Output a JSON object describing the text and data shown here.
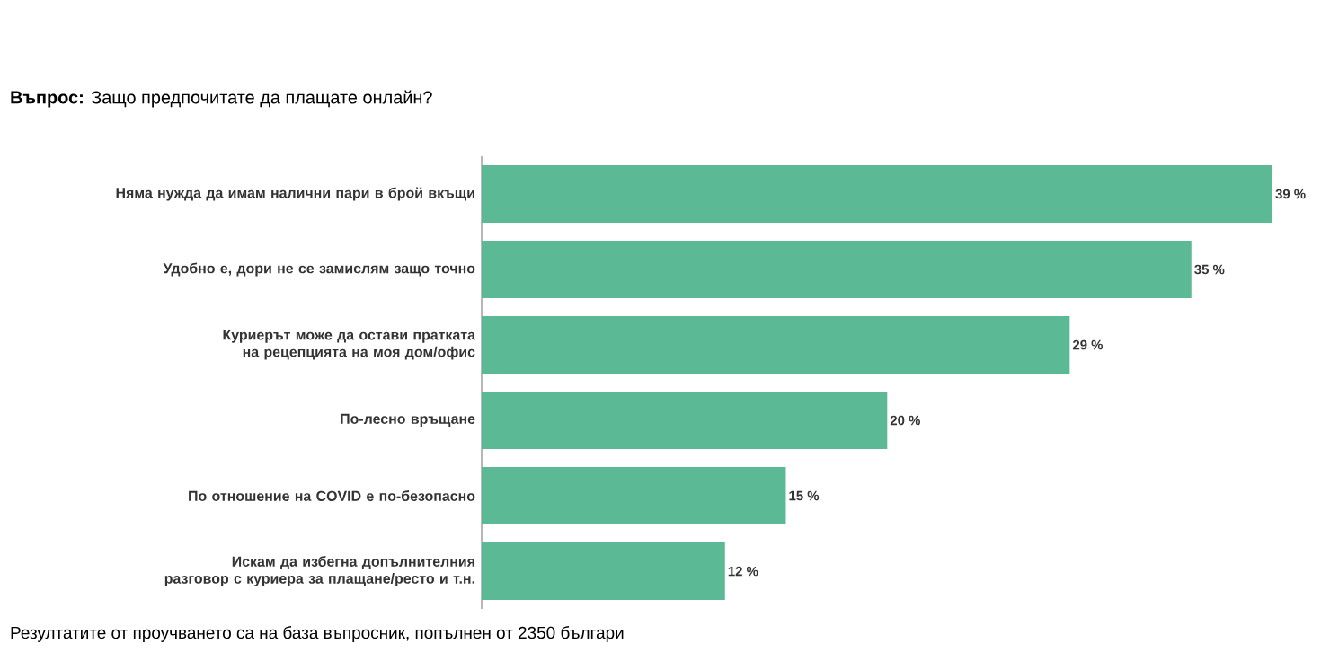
{
  "chart_data": {
    "type": "bar",
    "orientation": "horizontal",
    "title": "**Въпрос:** Защо предпочитате да плащате онлайн?",
    "categories": [
      "Няма нужда да имам налични пари в брой вкъщи",
      "Удобно е, дори не се замислям защо точно",
      "Куриерът може да остави пратката на рецепцията на моя дом/офис",
      "По-лесно връщане",
      "По отношение на COVID е по-безопасно",
      "Искам да избегна допълнителния разговор с куриера за плащане/ресто и т.н."
    ],
    "values": [
      39,
      35,
      29,
      20,
      15,
      12
    ],
    "value_labels": [
      "39 %",
      "35 %",
      "29 %",
      "20 %",
      "15 %",
      "12 %"
    ],
    "color": "#5cb995",
    "tick_labels": "y",
    "annotations": [
      "Резултатите от проучването са на база въпросник, попълнен от 2350 българи"
    ]
  }
}
